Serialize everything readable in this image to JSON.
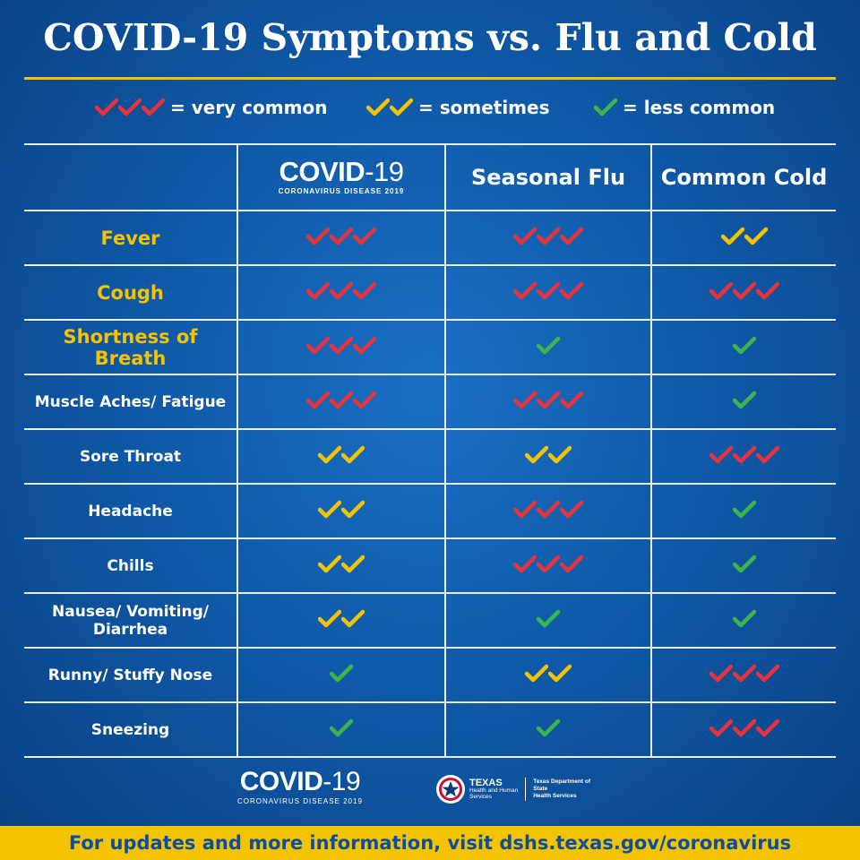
{
  "title": "COVID-19 Symptoms vs. Flu and Cold",
  "legend": [
    {
      "level": "very common",
      "count": 3,
      "color": "#e8333a",
      "label": "= very common"
    },
    {
      "level": "sometimes",
      "count": 2,
      "color": "#f5c400",
      "label": "= sometimes"
    },
    {
      "level": "less common",
      "count": 1,
      "color": "#3cb54a",
      "label": "= less common"
    }
  ],
  "columns": {
    "covid_logo_main": "COVID",
    "covid_logo_num": "-19",
    "covid_logo_sub": "CORONAVIRUS DISEASE 2019",
    "flu": "Seasonal Flu",
    "cold": "Common Cold"
  },
  "rows": [
    {
      "symptom": "Fever",
      "emphasis": true,
      "covid": 3,
      "flu": 3,
      "cold": 2
    },
    {
      "symptom": "Cough",
      "emphasis": true,
      "covid": 3,
      "flu": 3,
      "cold": 3
    },
    {
      "symptom": "Shortness of Breath",
      "emphasis": true,
      "covid": 3,
      "flu": 1,
      "cold": 1
    },
    {
      "symptom": "Muscle Aches/ Fatigue",
      "emphasis": false,
      "covid": 3,
      "flu": 3,
      "cold": 1
    },
    {
      "symptom": "Sore Throat",
      "emphasis": false,
      "covid": 2,
      "flu": 2,
      "cold": 3
    },
    {
      "symptom": "Headache",
      "emphasis": false,
      "covid": 2,
      "flu": 3,
      "cold": 1
    },
    {
      "symptom": "Chills",
      "emphasis": false,
      "covid": 2,
      "flu": 3,
      "cold": 1
    },
    {
      "symptom": "Nausea/ Vomiting/ Diarrhea",
      "emphasis": false,
      "covid": 2,
      "flu": 1,
      "cold": 1
    },
    {
      "symptom": "Runny/ Stuffy Nose",
      "emphasis": false,
      "covid": 1,
      "flu": 2,
      "cold": 3
    },
    {
      "symptom": "Sneezing",
      "emphasis": false,
      "covid": 1,
      "flu": 1,
      "cold": 3
    }
  ],
  "footer": {
    "covid_logo_main": "COVID",
    "covid_logo_num": "-19",
    "covid_logo_sub": "CORONAVIRUS DISEASE 2019",
    "tx_name": "TEXAS",
    "tx_sub1": "Health and Human",
    "tx_sub2": "Services",
    "tx_dshs1": "Texas Department of State",
    "tx_dshs2": "Health Services",
    "info": "For updates and more information, visit dshs.texas.gov/coronavirus"
  },
  "colors": {
    "accent": "#f5c400",
    "background": "#0f5aa8",
    "very_common": "#e8333a",
    "sometimes": "#f5c400",
    "less_common": "#3cb54a"
  }
}
